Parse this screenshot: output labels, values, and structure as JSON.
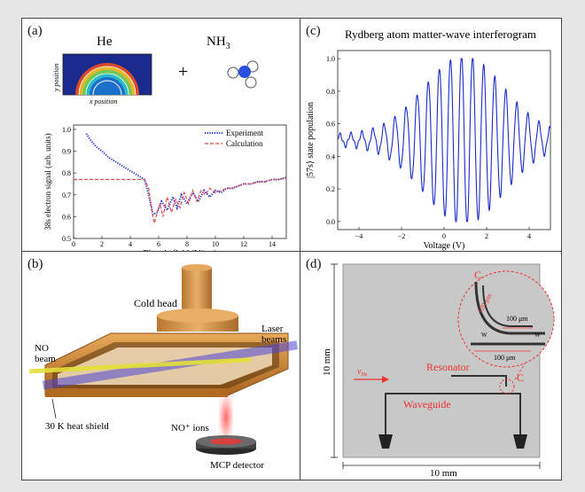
{
  "panels": {
    "a": {
      "label": "(a)",
      "he_label": "He",
      "nh3_label": "NH",
      "nh3_sub": "3",
      "plus": "+",
      "inset_ylabel": "y position",
      "inset_xlabel": "x position"
    },
    "b": {
      "label": "(b)",
      "cold_head": "Cold head",
      "no_beam": "NO\nbeam",
      "laser_beams": "Laser\nbeams",
      "heat_shield": "30 K heat shield",
      "no_ions": "NO⁺ ions",
      "mcp_detector": "MCP detector"
    },
    "c": {
      "label": "(c)"
    },
    "d": {
      "label": "(d)",
      "resonator": "Resonator",
      "waveguide": "Waveguide",
      "velocity": "v",
      "velocity_sub": "He",
      "c_label_1": "C",
      "c_label_2": "C",
      "dim_10mm_v": "10 mm",
      "dim_10mm_h": "10 mm",
      "inset_120um": "120 μm",
      "inset_100um_top": "100 μm",
      "inset_100um_bottom": "100 μm",
      "inset_w": "W",
      "inset_w2": "W"
    }
  },
  "chart_data": [
    {
      "type": "line",
      "xlabel": "Electric field (V/cm)",
      "ylabel": "38s electron signal (arb. units)",
      "xlim": [
        0,
        15
      ],
      "ylim": [
        0.5,
        1.02
      ],
      "x_ticks": [
        "0",
        "2",
        "4",
        "6",
        "8",
        "10",
        "12",
        "14"
      ],
      "y_ticks": [
        "0.5",
        "0.6",
        "0.7",
        "0.8",
        "0.9",
        "1.0"
      ],
      "legend": "top-right",
      "series": [
        {
          "name": "Experiment",
          "color": "#1a2ccf",
          "style": "dotted",
          "x": [
            0.9,
            1.2,
            1.6,
            2.0,
            2.5,
            3.0,
            3.5,
            4.0,
            4.5,
            5.0,
            5.3,
            5.6,
            5.9,
            6.2,
            6.6,
            7.0,
            7.3,
            7.6,
            8.0,
            8.4,
            8.8,
            9.2,
            9.6,
            10.0,
            10.4,
            10.8,
            11.2,
            11.6,
            12.0,
            12.5,
            13.0,
            13.5,
            14.0,
            14.5,
            15.0
          ],
          "y": [
            0.98,
            0.95,
            0.92,
            0.9,
            0.87,
            0.85,
            0.83,
            0.81,
            0.79,
            0.77,
            0.7,
            0.61,
            0.62,
            0.67,
            0.63,
            0.69,
            0.64,
            0.7,
            0.66,
            0.71,
            0.67,
            0.72,
            0.69,
            0.72,
            0.71,
            0.73,
            0.73,
            0.74,
            0.75,
            0.75,
            0.76,
            0.76,
            0.77,
            0.77,
            0.78
          ]
        },
        {
          "name": "Calculation",
          "color": "#e24b4b",
          "style": "dashed",
          "x": [
            0.0,
            1.0,
            2.0,
            3.0,
            4.0,
            5.0,
            5.3,
            5.5,
            5.7,
            5.9,
            6.1,
            6.3,
            6.6,
            6.9,
            7.2,
            7.5,
            7.8,
            8.1,
            8.4,
            8.7,
            9.0,
            9.3,
            9.6,
            10.0,
            10.4,
            10.8,
            11.2,
            11.6,
            12.0,
            12.5,
            13.0,
            13.5,
            14.0,
            14.5,
            15.0
          ],
          "y": [
            0.77,
            0.77,
            0.77,
            0.77,
            0.77,
            0.77,
            0.73,
            0.63,
            0.57,
            0.62,
            0.66,
            0.6,
            0.69,
            0.62,
            0.68,
            0.64,
            0.71,
            0.66,
            0.72,
            0.67,
            0.72,
            0.7,
            0.73,
            0.71,
            0.72,
            0.73,
            0.73,
            0.74,
            0.75,
            0.75,
            0.76,
            0.76,
            0.77,
            0.77,
            0.78
          ]
        }
      ]
    },
    {
      "type": "line",
      "title": "Rydberg atom matter-wave interferogram",
      "xlabel": "Voltage (V)",
      "ylabel": "|57s⟩ state population",
      "xlim": [
        -5,
        5
      ],
      "ylim": [
        -0.05,
        1.05
      ],
      "x_ticks": [
        "−4",
        "−2",
        "0",
        "2",
        "4"
      ],
      "y_ticks": [
        "0.0",
        "0.2",
        "0.4",
        "0.6",
        "0.8",
        "1.0"
      ],
      "series": [
        {
          "color": "#1a2ccf",
          "x_range": [
            -5,
            5
          ],
          "baseline": 0.5,
          "fringe_period_V": 0.52,
          "phase_center_V": 0.3,
          "peak_envelope_V": 0.9,
          "envelope_max": 0.5
        }
      ]
    }
  ]
}
